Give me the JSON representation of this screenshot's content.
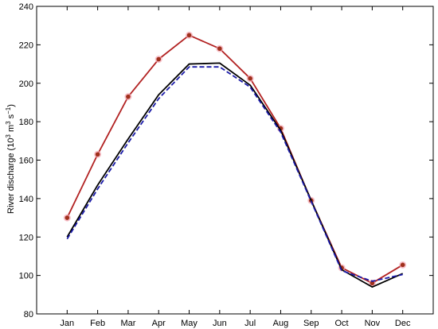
{
  "chart_data": {
    "type": "line",
    "title": "",
    "xlabel": "",
    "ylabel": "River discharge (10³ m³ s⁻¹)",
    "ylabel_parts": {
      "base": "River discharge (10",
      "exp1": "3",
      "mid": " m",
      "exp2": "3",
      "mid2": " s",
      "exp3": "−1",
      "end": ")"
    },
    "categories": [
      "Jan",
      "Feb",
      "Mar",
      "Apr",
      "May",
      "Jun",
      "Jul",
      "Aug",
      "Sep",
      "Oct",
      "Nov",
      "Dec"
    ],
    "ylim": [
      80,
      240
    ],
    "yticks": [
      80,
      100,
      120,
      140,
      160,
      180,
      200,
      220,
      240
    ],
    "grid": false,
    "legend": "none",
    "series": [
      {
        "values": [
          130,
          163,
          193,
          212.5,
          225,
          218,
          202.5,
          176.5,
          139,
          104,
          96,
          105.5
        ],
        "color": "#b22222",
        "style": "solid-markers"
      },
      {
        "values": [
          120,
          147,
          171,
          194,
          210,
          210.5,
          199,
          175.5,
          139,
          103,
          94,
          101
        ],
        "color": "#000000",
        "style": "solid"
      },
      {
        "values": [
          119,
          145,
          169,
          192,
          208.5,
          208.5,
          198,
          174.5,
          138.5,
          102.5,
          97,
          100.5
        ],
        "color": "#1a1aa8",
        "style": "dashed"
      }
    ]
  }
}
